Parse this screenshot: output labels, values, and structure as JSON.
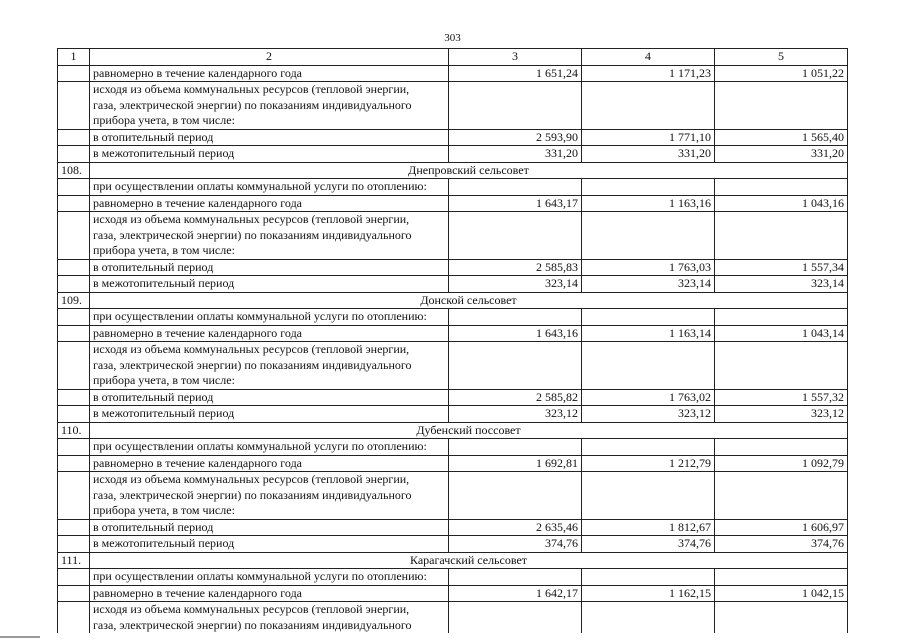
{
  "page_number": "303",
  "header": [
    "1",
    "2",
    "3",
    "4",
    "5"
  ],
  "sections": [
    {
      "number": "",
      "title": "",
      "rows": [
        {
          "text": [
            "равномерно в течение календарного года"
          ],
          "values": [
            "1 651,24",
            "1 171,23",
            "1 051,22"
          ]
        },
        {
          "text": [
            "исходя из объема коммунальных ресурсов (тепловой энергии,",
            "газа, электрической энергии) по показаниям индивидуального",
            "прибора учета, в том числе:"
          ],
          "values": [
            "",
            "",
            ""
          ]
        },
        {
          "text": [
            "в отопительный период"
          ],
          "values": [
            "2 593,90",
            "1 771,10",
            "1 565,40"
          ]
        },
        {
          "text": [
            "в межотопительный период"
          ],
          "values": [
            "331,20",
            "331,20",
            "331,20"
          ]
        }
      ]
    },
    {
      "number": "108.",
      "title": "Днепровский сельсовет",
      "rows": [
        {
          "text": [
            "при осуществлении оплаты коммунальной услуги по отоплению:"
          ],
          "values": [
            "",
            "",
            ""
          ]
        },
        {
          "text": [
            "равномерно в течение календарного года"
          ],
          "values": [
            "1 643,17",
            "1 163,16",
            "1 043,16"
          ]
        },
        {
          "text": [
            "исходя из объема коммунальных ресурсов (тепловой энергии,",
            "газа, электрической энергии) по показаниям индивидуального",
            "прибора учета, в том числе:"
          ],
          "values": [
            "",
            "",
            ""
          ]
        },
        {
          "text": [
            "в отопительный период"
          ],
          "values": [
            "2 585,83",
            "1 763,03",
            "1 557,34"
          ]
        },
        {
          "text": [
            "в межотопительный период"
          ],
          "values": [
            "323,14",
            "323,14",
            "323,14"
          ]
        }
      ]
    },
    {
      "number": "109.",
      "title": "Донской сельсовет",
      "rows": [
        {
          "text": [
            "при осуществлении оплаты коммунальной услуги по отоплению:"
          ],
          "values": [
            "",
            "",
            ""
          ]
        },
        {
          "text": [
            "равномерно в течение календарного года"
          ],
          "values": [
            "1 643,16",
            "1 163,14",
            "1 043,14"
          ]
        },
        {
          "text": [
            "исходя из объема коммунальных ресурсов (тепловой энергии,",
            "газа, электрической энергии) по показаниям индивидуального",
            "прибора учета, в том числе:"
          ],
          "values": [
            "",
            "",
            ""
          ]
        },
        {
          "text": [
            "в отопительный период"
          ],
          "values": [
            "2 585,82",
            "1 763,02",
            "1 557,32"
          ]
        },
        {
          "text": [
            "в межотопительный период"
          ],
          "values": [
            "323,12",
            "323,12",
            "323,12"
          ]
        }
      ]
    },
    {
      "number": "110.",
      "title": "Дубенский поссовет",
      "rows": [
        {
          "text": [
            "при осуществлении оплаты коммунальной услуги по отоплению:"
          ],
          "values": [
            "",
            "",
            ""
          ]
        },
        {
          "text": [
            "равномерно в течение календарного года"
          ],
          "values": [
            "1 692,81",
            "1 212,79",
            "1 092,79"
          ]
        },
        {
          "text": [
            "исходя из объема коммунальных ресурсов (тепловой энергии,",
            "газа, электрической энергии) по показаниям индивидуального",
            "прибора учета, в том числе:"
          ],
          "values": [
            "",
            "",
            ""
          ]
        },
        {
          "text": [
            "в отопительный период"
          ],
          "values": [
            "2 635,46",
            "1 812,67",
            "1 606,97"
          ]
        },
        {
          "text": [
            "в межотопительный период"
          ],
          "values": [
            "374,76",
            "374,76",
            "374,76"
          ]
        }
      ]
    },
    {
      "number": "111.",
      "title": "Карагачский сельсовет",
      "rows": [
        {
          "text": [
            "при осуществлении оплаты коммунальной услуги по отоплению:"
          ],
          "values": [
            "",
            "",
            ""
          ]
        },
        {
          "text": [
            "равномерно в течение календарного года"
          ],
          "values": [
            "1 642,17",
            "1 162,15",
            "1 042,15"
          ]
        },
        {
          "text": [
            "исходя из объема коммунальных ресурсов (тепловой энергии,",
            "газа, электрической энергии) по показаниям индивидуального"
          ],
          "values": [
            "",
            "",
            ""
          ],
          "cut": true
        }
      ]
    }
  ]
}
